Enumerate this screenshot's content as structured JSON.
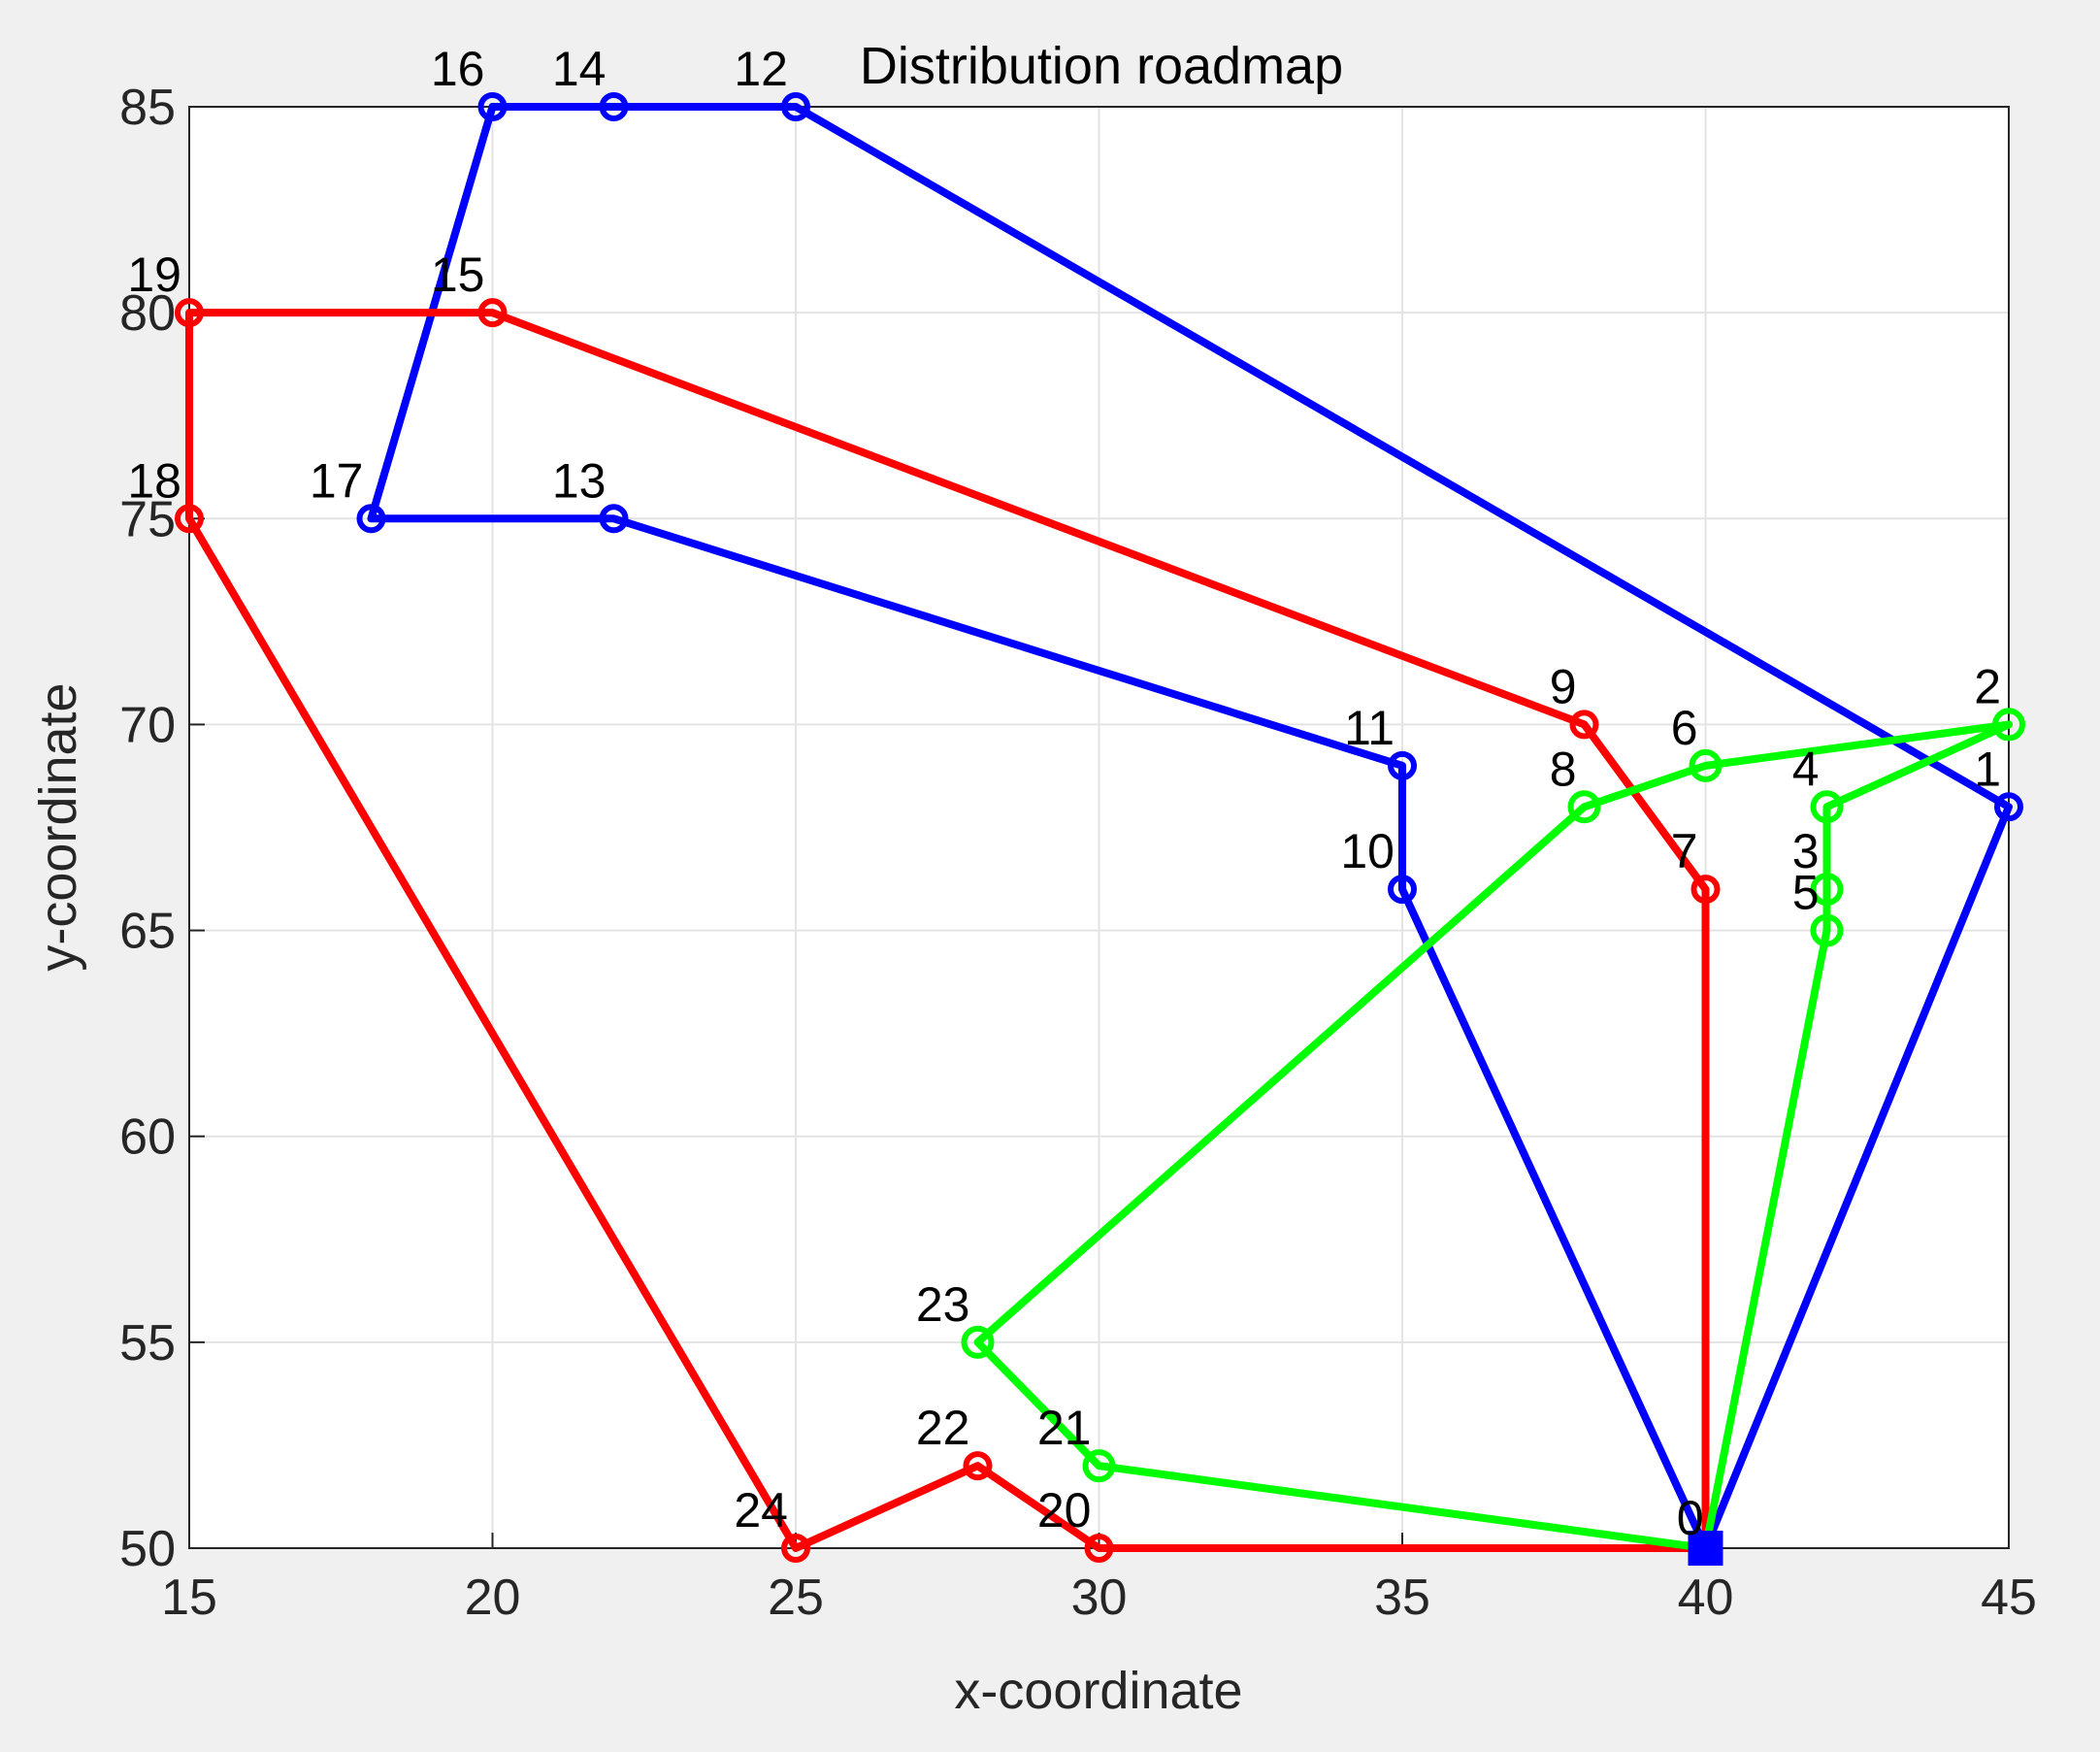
{
  "chart_data": {
    "type": "line",
    "title": "Distribution roadmap",
    "xlabel": "x-coordinate",
    "ylabel": "y-coordinate",
    "xlim": [
      15,
      45
    ],
    "ylim": [
      50,
      85
    ],
    "xticks": [
      15,
      20,
      25,
      30,
      35,
      40,
      45
    ],
    "yticks": [
      50,
      55,
      60,
      65,
      70,
      75,
      80,
      85
    ],
    "grid": true,
    "depot": {
      "label": "0",
      "x": 40,
      "y": 50,
      "marker": "square",
      "color": "#0000ff"
    },
    "series": [
      {
        "color": "#0000ff",
        "points": [
          {
            "label": "0",
            "x": 40,
            "y": 50
          },
          {
            "label": "1",
            "x": 45,
            "y": 68
          },
          {
            "label": "12",
            "x": 25,
            "y": 85
          },
          {
            "label": "14",
            "x": 22,
            "y": 85
          },
          {
            "label": "16",
            "x": 20,
            "y": 85
          },
          {
            "label": "17",
            "x": 18,
            "y": 75
          },
          {
            "label": "13",
            "x": 22,
            "y": 75
          },
          {
            "label": "11",
            "x": 35,
            "y": 69
          },
          {
            "label": "10",
            "x": 35,
            "y": 66
          },
          {
            "label": "0",
            "x": 40,
            "y": 50
          }
        ]
      },
      {
        "color": "#ff0000",
        "points": [
          {
            "label": "0",
            "x": 40,
            "y": 50
          },
          {
            "label": "7",
            "x": 40,
            "y": 66
          },
          {
            "label": "9",
            "x": 38,
            "y": 70
          },
          {
            "label": "15",
            "x": 20,
            "y": 80
          },
          {
            "label": "19",
            "x": 15,
            "y": 80
          },
          {
            "label": "18",
            "x": 15,
            "y": 75
          },
          {
            "label": "24",
            "x": 25,
            "y": 50
          },
          {
            "label": "22",
            "x": 28,
            "y": 52
          },
          {
            "label": "20",
            "x": 30,
            "y": 50
          },
          {
            "label": "0",
            "x": 40,
            "y": 50
          }
        ]
      },
      {
        "color": "#00ff00",
        "points": [
          {
            "label": "0",
            "x": 40,
            "y": 50
          },
          {
            "label": "5",
            "x": 42,
            "y": 65
          },
          {
            "label": "3",
            "x": 42,
            "y": 66
          },
          {
            "label": "4",
            "x": 42,
            "y": 68
          },
          {
            "label": "2",
            "x": 45,
            "y": 70
          },
          {
            "label": "6",
            "x": 40,
            "y": 69
          },
          {
            "label": "8",
            "x": 38,
            "y": 68
          },
          {
            "label": "23",
            "x": 28,
            "y": 55
          },
          {
            "label": "21",
            "x": 30,
            "y": 52
          },
          {
            "label": "0",
            "x": 40,
            "y": 50
          }
        ]
      }
    ]
  }
}
